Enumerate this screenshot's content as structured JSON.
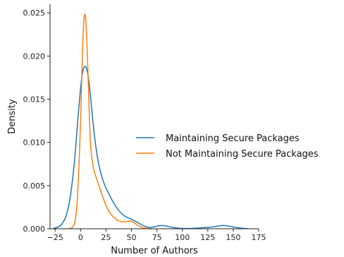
{
  "chart_data": {
    "type": "line",
    "title": "",
    "xlabel": "Number of Authors",
    "ylabel": "Density",
    "xlim": [
      -30,
      175
    ],
    "ylim": [
      0,
      0.026
    ],
    "xticks": [
      -25,
      0,
      25,
      50,
      75,
      100,
      125,
      150,
      175
    ],
    "yticks": [
      0.0,
      0.005,
      0.01,
      0.015,
      0.02,
      0.025
    ],
    "xtick_labels": [
      "−25",
      "0",
      "25",
      "50",
      "75",
      "100",
      "125",
      "150",
      "175"
    ],
    "ytick_labels": [
      "0.000",
      "0.005",
      "0.010",
      "0.015",
      "0.020",
      "0.025"
    ],
    "grid": false,
    "legend_position": "right",
    "series": [
      {
        "name": "Maintaining Secure Packages",
        "color": "#1f77b4",
        "x": [
          -27,
          -22,
          -18,
          -14,
          -10,
          -6,
          -3,
          0,
          2,
          4,
          6,
          8,
          10,
          12,
          14,
          16,
          18,
          20,
          22,
          25,
          28,
          31,
          34,
          37,
          40,
          43,
          46,
          50,
          54,
          58,
          62,
          66,
          70,
          75,
          80,
          85,
          90,
          95,
          100,
          105,
          110,
          115,
          120,
          125,
          130,
          135,
          140,
          145,
          150,
          155,
          160,
          165
        ],
        "y": [
          4e-05,
          0.0002,
          0.0006,
          0.0016,
          0.0038,
          0.0078,
          0.0122,
          0.0163,
          0.0181,
          0.0188,
          0.0185,
          0.0172,
          0.015,
          0.0126,
          0.0104,
          0.0087,
          0.0074,
          0.0064,
          0.0056,
          0.0047,
          0.004,
          0.0033,
          0.0027,
          0.0022,
          0.0018,
          0.0015,
          0.0013,
          0.0011,
          0.00085,
          0.0006,
          0.00035,
          0.00018,
          0.00016,
          0.0003,
          0.00038,
          0.0003,
          0.00016,
          8e-05,
          4e-05,
          3e-05,
          5e-05,
          8e-05,
          0.00012,
          0.00016,
          0.00022,
          0.00032,
          0.00038,
          0.00032,
          0.0002,
          0.0001,
          4e-05,
          1e-05
        ]
      },
      {
        "name": "Not Maintaining Secure Packages",
        "color": "#ff7f0e",
        "x": [
          -12,
          -9,
          -6,
          -4,
          -2,
          0,
          1,
          2,
          3,
          4,
          5,
          6,
          7,
          8,
          9,
          10,
          12,
          14,
          16,
          18,
          20,
          22,
          25,
          28,
          31,
          34,
          37,
          40,
          43,
          46,
          48,
          50,
          52,
          55,
          58,
          61,
          64,
          67,
          70
        ],
        "y": [
          1e-05,
          0.0001,
          0.0006,
          0.0022,
          0.0062,
          0.0125,
          0.0168,
          0.0208,
          0.0237,
          0.0248,
          0.0243,
          0.0222,
          0.019,
          0.0153,
          0.0118,
          0.0094,
          0.0074,
          0.0064,
          0.0057,
          0.005,
          0.0043,
          0.0036,
          0.0027,
          0.002,
          0.0015,
          0.0012,
          0.00095,
          0.00082,
          0.0008,
          0.00085,
          0.0009,
          0.00085,
          0.00072,
          0.0005,
          0.00028,
          0.00013,
          6e-05,
          2e-05,
          5e-06
        ]
      }
    ]
  }
}
